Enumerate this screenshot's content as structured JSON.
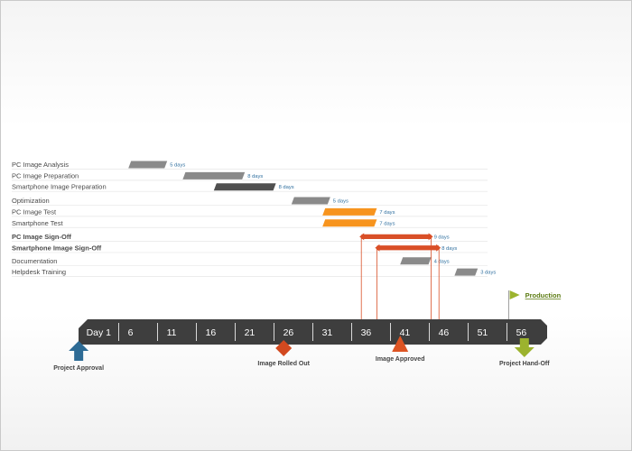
{
  "chart_data": {
    "type": "gantt",
    "time_unit": "day",
    "axis": {
      "tick_labels": [
        "Day 1",
        "6",
        "11",
        "16",
        "21",
        "26",
        "31",
        "36",
        "41",
        "46",
        "51",
        "56"
      ],
      "tick_values": [
        1,
        6,
        11,
        16,
        21,
        26,
        31,
        36,
        41,
        46,
        51,
        56
      ],
      "range": [
        1,
        61
      ],
      "color": "#3e3e3e"
    },
    "tasks": [
      {
        "name": "PC Image Analysis",
        "start": 7,
        "duration": 5,
        "duration_label": "5 days",
        "style": "gray",
        "label_color": "#4a4a4a",
        "bold": false
      },
      {
        "name": "PC Image Preparation",
        "start": 14,
        "duration": 8,
        "duration_label": "8 days",
        "style": "gray",
        "label_color": "#4a4a4a",
        "bold": false
      },
      {
        "name": "Smartphone Image Preparation",
        "start": 18,
        "duration": 8,
        "duration_label": "8 days",
        "style": "dark",
        "label_color": "#4a4a4a",
        "bold": false
      },
      {
        "name": "Optimization",
        "start": 28,
        "duration": 5,
        "duration_label": "5 days",
        "style": "gray",
        "label_color": "#4a4a4a",
        "bold": false
      },
      {
        "name": "PC Image Test",
        "start": 32,
        "duration": 7,
        "duration_label": "7 days",
        "style": "orange",
        "label_color": "#e07b16",
        "bold": false
      },
      {
        "name": "Smartphone Test",
        "start": 32,
        "duration": 7,
        "duration_label": "7 days",
        "style": "orange",
        "label_color": "#e07b16",
        "bold": false
      },
      {
        "name": "PC Image Sign-Off",
        "start": 37,
        "duration": 9,
        "duration_label": "9 days",
        "style": "red",
        "label_color": "#cc4a26",
        "bold": true
      },
      {
        "name": "Smartphone Image Sign-Off",
        "start": 39,
        "duration": 8,
        "duration_label": "8 days",
        "style": "red",
        "label_color": "#cc4a26",
        "bold": true
      },
      {
        "name": "Documentation",
        "start": 42,
        "duration": 4,
        "duration_label": "4 days",
        "style": "gray",
        "label_color": "#4a4a4a",
        "bold": false
      },
      {
        "name": "Helpdesk Training",
        "start": 49,
        "duration": 3,
        "duration_label": "3 days",
        "style": "gray",
        "label_color": "#4a4a4a",
        "bold": false
      }
    ],
    "milestones": [
      {
        "name": "Project Approval",
        "day": 0.6,
        "shape": "arrow-up",
        "color": "#2d6b95"
      },
      {
        "name": "Image Rolled Out",
        "day": 27,
        "shape": "diamond",
        "color": "#d2491f"
      },
      {
        "name": "Image Approved",
        "day": 42,
        "shape": "triangle",
        "color": "#dd5423"
      },
      {
        "name": "Project Hand-Off",
        "day": 58,
        "shape": "arrow-down",
        "color": "#9cb32e"
      },
      {
        "name": "Production",
        "day": 56,
        "shape": "flag",
        "color": "#9cb32e"
      }
    ],
    "bar_colors": {
      "gray": "#8a8a8a",
      "dark": "#4f4f4f",
      "orange": "#f7941e",
      "red": "#d94f27"
    }
  }
}
